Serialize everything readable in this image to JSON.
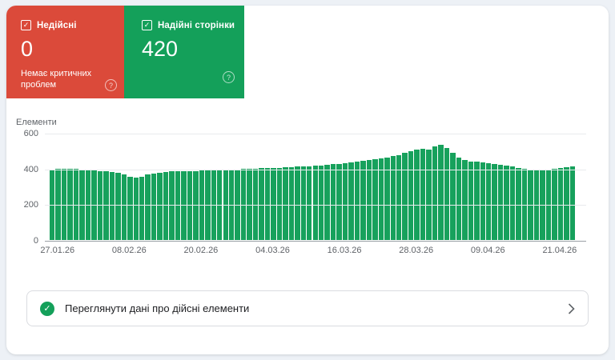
{
  "cards": {
    "invalid": {
      "label": "Недійсні",
      "value": "0",
      "subtitle": "Немає критичних проблем",
      "color": "#db4a3a",
      "help": "?"
    },
    "valid": {
      "label": "Надійні сторінки",
      "value": "420",
      "color": "#14a05a",
      "help": "?"
    }
  },
  "chart_data": {
    "type": "bar",
    "title": "",
    "ylabel": "Елементи",
    "ylim": [
      0,
      600
    ],
    "y_ticks": [
      600,
      400,
      200,
      0
    ],
    "grid": true,
    "bar_color": "#17a15c",
    "x_tick_labels": [
      "27.01.26",
      "08.02.26",
      "20.02.26",
      "04.03.26",
      "16.03.26",
      "28.03.26",
      "09.04.26",
      "21.04.26"
    ],
    "x_tick_indices": [
      0,
      12,
      24,
      36,
      48,
      60,
      72,
      84
    ],
    "x_unit": "day",
    "values": [
      398,
      402,
      400,
      403,
      401,
      399,
      397,
      394,
      390,
      387,
      383,
      378,
      368,
      355,
      350,
      357,
      368,
      375,
      380,
      383,
      386,
      388,
      387,
      389,
      390,
      391,
      392,
      393,
      394,
      396,
      397,
      398,
      400,
      401,
      402,
      404,
      405,
      406,
      408,
      409,
      411,
      413,
      415,
      417,
      419,
      421,
      424,
      427,
      430,
      433,
      437,
      441,
      445,
      450,
      455,
      460,
      466,
      472,
      480,
      490,
      500,
      508,
      516,
      512,
      528,
      538,
      520,
      490,
      466,
      452,
      444,
      440,
      437,
      434,
      430,
      426,
      420,
      414,
      408,
      403,
      399,
      395,
      393,
      396,
      400,
      404,
      409,
      416
    ]
  },
  "footer": {
    "label": "Переглянути дані про дійсні елементи",
    "check_glyph": "✓"
  }
}
